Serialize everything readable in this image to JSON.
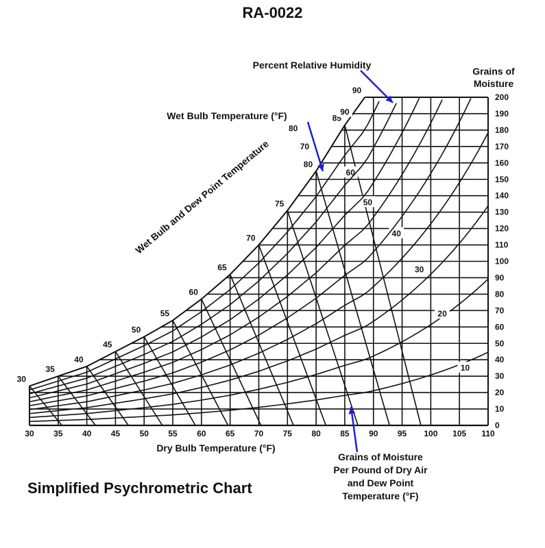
{
  "header": {
    "title": "RA-0022"
  },
  "footer": {
    "title": "Simplified Psychrometric Chart"
  },
  "annotations": {
    "rh": "Percent Relative Humidity",
    "wet_bulb": "Wet Bulb Temperature (°F)",
    "grains_axis": [
      "Grains of",
      "Moisture"
    ],
    "saturation": "Wet Bulb and Dew Point Temperature",
    "xlabel": "Dry Bulb Temperature (°F)",
    "grains_note": [
      "Grains of Moisture",
      "Per Pound of Dry Air",
      "and Dew Point",
      "Temperature (°F)"
    ],
    "arrow_color": "#1f1fd6"
  },
  "chart_data": {
    "type": "line",
    "title": "Simplified Psychrometric Chart",
    "xlabel": "Dry Bulb Temperature (°F)",
    "ylabel": "Grains of Moisture",
    "xlim": [
      30,
      110
    ],
    "ylim": [
      0,
      200
    ],
    "x_ticks": [
      30,
      35,
      40,
      45,
      50,
      55,
      60,
      65,
      70,
      75,
      80,
      85,
      90,
      95,
      100,
      105,
      110
    ],
    "y_ticks": [
      0,
      10,
      20,
      30,
      40,
      50,
      60,
      70,
      80,
      90,
      100,
      110,
      120,
      130,
      140,
      150,
      160,
      170,
      180,
      190,
      200
    ],
    "saturation_curve": {
      "x": [
        30,
        35,
        40,
        45,
        50,
        55,
        60,
        65,
        70,
        75,
        80,
        85,
        88.5
      ],
      "y": [
        24,
        30,
        36,
        45,
        54,
        64,
        77,
        92,
        110,
        131,
        155,
        183,
        200
      ]
    },
    "saturation_labels": [
      30,
      35,
      40,
      45,
      50,
      55,
      60,
      65,
      70,
      75,
      80,
      85,
      90
    ],
    "rh_curves": [
      {
        "name": "10",
        "label_at": [
          106,
          35
        ]
      },
      {
        "name": "20",
        "label_at": [
          102,
          68
        ]
      },
      {
        "name": "30",
        "label_at": [
          98,
          95
        ]
      },
      {
        "name": "40",
        "label_at": [
          94,
          117
        ]
      },
      {
        "name": "50",
        "label_at": [
          89,
          136
        ]
      },
      {
        "name": "60",
        "label_at": [
          86,
          154
        ]
      },
      {
        "name": "70",
        "label_at": [
          78,
          170
        ]
      },
      {
        "name": "80",
        "label_at": [
          76,
          181
        ]
      },
      {
        "name": "90",
        "label_at": [
          85,
          191
        ]
      }
    ],
    "grid": true,
    "legend": null
  }
}
